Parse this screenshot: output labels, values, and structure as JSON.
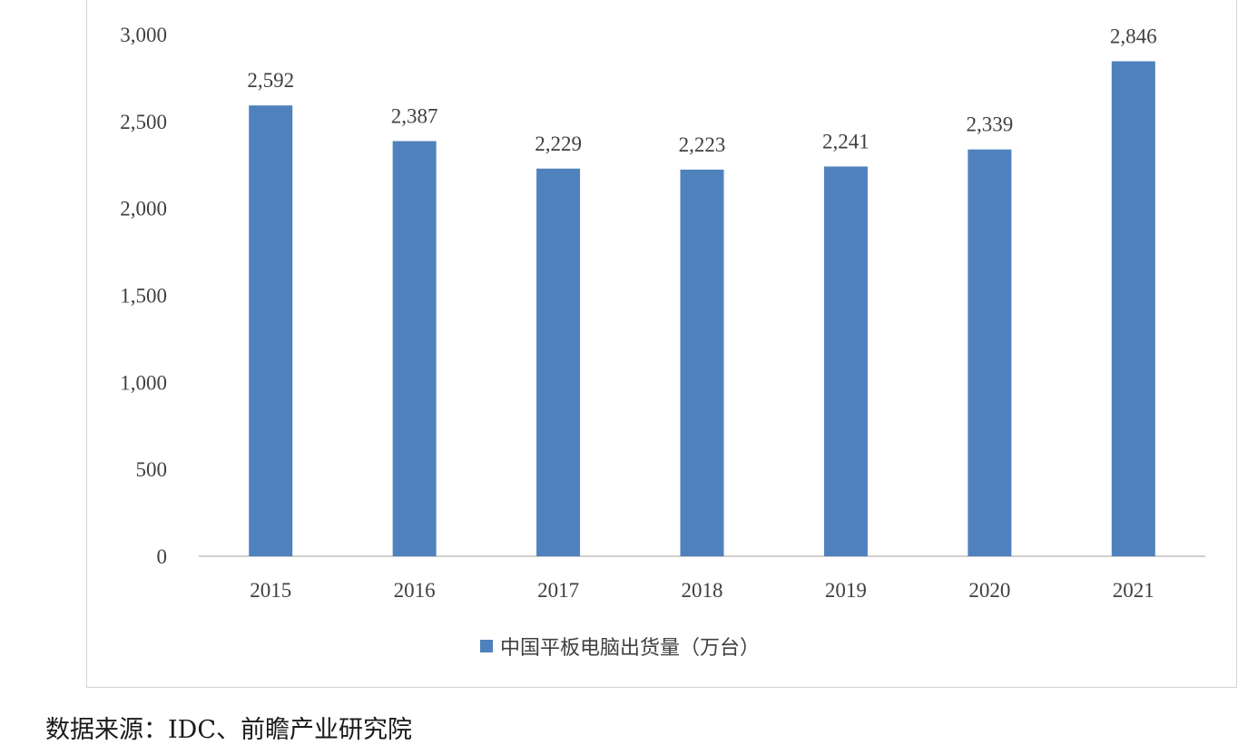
{
  "chart_data": {
    "type": "bar",
    "categories": [
      "2015",
      "2016",
      "2017",
      "2018",
      "2019",
      "2020",
      "2021"
    ],
    "series": [
      {
        "name": "中国平板电脑出货量（万台）",
        "values": [
          2592,
          2387,
          2229,
          2223,
          2241,
          2339,
          2846
        ],
        "data_labels": [
          "2,592",
          "2,387",
          "2,229",
          "2,223",
          "2,241",
          "2,339",
          "2,846"
        ],
        "color": "#4f81bd"
      }
    ],
    "ylim": [
      0,
      3000
    ],
    "yticks": [
      0,
      500,
      1000,
      1500,
      2000,
      2500,
      3000
    ],
    "ytick_labels": [
      "0",
      "500",
      "1,000",
      "1,500",
      "2,000",
      "2,500",
      "3,000"
    ],
    "grid": false,
    "legend_position": "bottom"
  },
  "source_note": "数据来源：IDC、前瞻产业研究院"
}
